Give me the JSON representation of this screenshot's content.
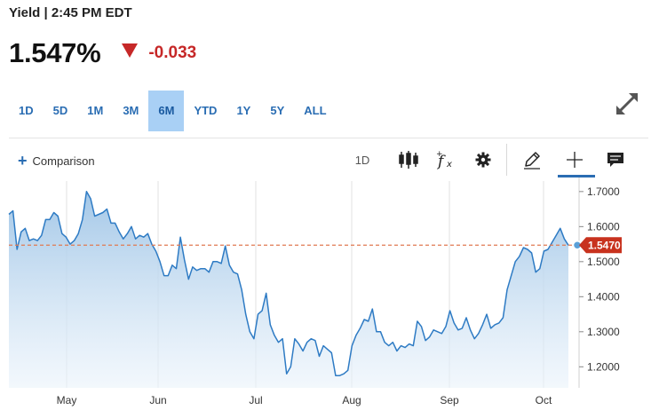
{
  "header": {
    "title": "Yield | 2:45 PM EDT",
    "quote_value": "1.547%",
    "change_value": "-0.033",
    "change_color": "#c62828"
  },
  "range_tabs": [
    {
      "label": "1D",
      "active": false
    },
    {
      "label": "5D",
      "active": false
    },
    {
      "label": "1M",
      "active": false
    },
    {
      "label": "3M",
      "active": false
    },
    {
      "label": "6M",
      "active": true
    },
    {
      "label": "YTD",
      "active": false
    },
    {
      "label": "1Y",
      "active": false
    },
    {
      "label": "5Y",
      "active": false
    },
    {
      "label": "ALL",
      "active": false
    }
  ],
  "toolbar": {
    "comparison_label": "Comparison",
    "interval_label": "1D",
    "icons": [
      "candlestick-icon",
      "function-icon",
      "gear-icon",
      "pencil-icon",
      "crosshair-icon",
      "comment-icon"
    ],
    "active_tool": "crosshair-icon"
  },
  "chart_data": {
    "type": "area",
    "title": "",
    "xlabel": "",
    "ylabel": "",
    "x_ticks": [
      "May",
      "Jun",
      "Jul",
      "Aug",
      "Sep",
      "Oct"
    ],
    "y_ticks": [
      "1.7000",
      "1.6000",
      "1.5000",
      "1.4000",
      "1.3000",
      "1.2000"
    ],
    "ylim": [
      1.14,
      1.73
    ],
    "grid": true,
    "line_color": "#2e7bc4",
    "fill_color": "#9ec4e6",
    "reference_line": {
      "value": 1.547,
      "style": "dashed",
      "color": "#e07a52"
    },
    "current_price_label": "1.5470",
    "current_price_color": "#c8321e",
    "series": [
      {
        "values": [
          1.635,
          1.645,
          1.535,
          1.585,
          1.595,
          1.56,
          1.565,
          1.56,
          1.575,
          1.62,
          1.62,
          1.64,
          1.63,
          1.58,
          1.57,
          1.55,
          1.56,
          1.58,
          1.62,
          1.7,
          1.68,
          1.63,
          1.635,
          1.64,
          1.65,
          1.61,
          1.61,
          1.585,
          1.565,
          1.58,
          1.6,
          1.565,
          1.575,
          1.57,
          1.58,
          1.55,
          1.53,
          1.5,
          1.46,
          1.46,
          1.49,
          1.48,
          1.57,
          1.505,
          1.45,
          1.485,
          1.475,
          1.48,
          1.48,
          1.47,
          1.5,
          1.5,
          1.495,
          1.545,
          1.49,
          1.47,
          1.465,
          1.42,
          1.35,
          1.3,
          1.28,
          1.35,
          1.36,
          1.41,
          1.32,
          1.29,
          1.27,
          1.28,
          1.18,
          1.2,
          1.28,
          1.265,
          1.245,
          1.27,
          1.28,
          1.275,
          1.23,
          1.26,
          1.25,
          1.24,
          1.175,
          1.175,
          1.18,
          1.19,
          1.26,
          1.29,
          1.31,
          1.335,
          1.33,
          1.365,
          1.3,
          1.3,
          1.27,
          1.26,
          1.27,
          1.245,
          1.26,
          1.255,
          1.265,
          1.26,
          1.33,
          1.315,
          1.275,
          1.285,
          1.305,
          1.3,
          1.295,
          1.315,
          1.36,
          1.325,
          1.305,
          1.31,
          1.34,
          1.305,
          1.28,
          1.295,
          1.32,
          1.35,
          1.31,
          1.32,
          1.325,
          1.34,
          1.42,
          1.46,
          1.5,
          1.515,
          1.54,
          1.535,
          1.525,
          1.47,
          1.48,
          1.53,
          1.535,
          1.555,
          1.575,
          1.595,
          1.565,
          1.547
        ]
      }
    ]
  }
}
